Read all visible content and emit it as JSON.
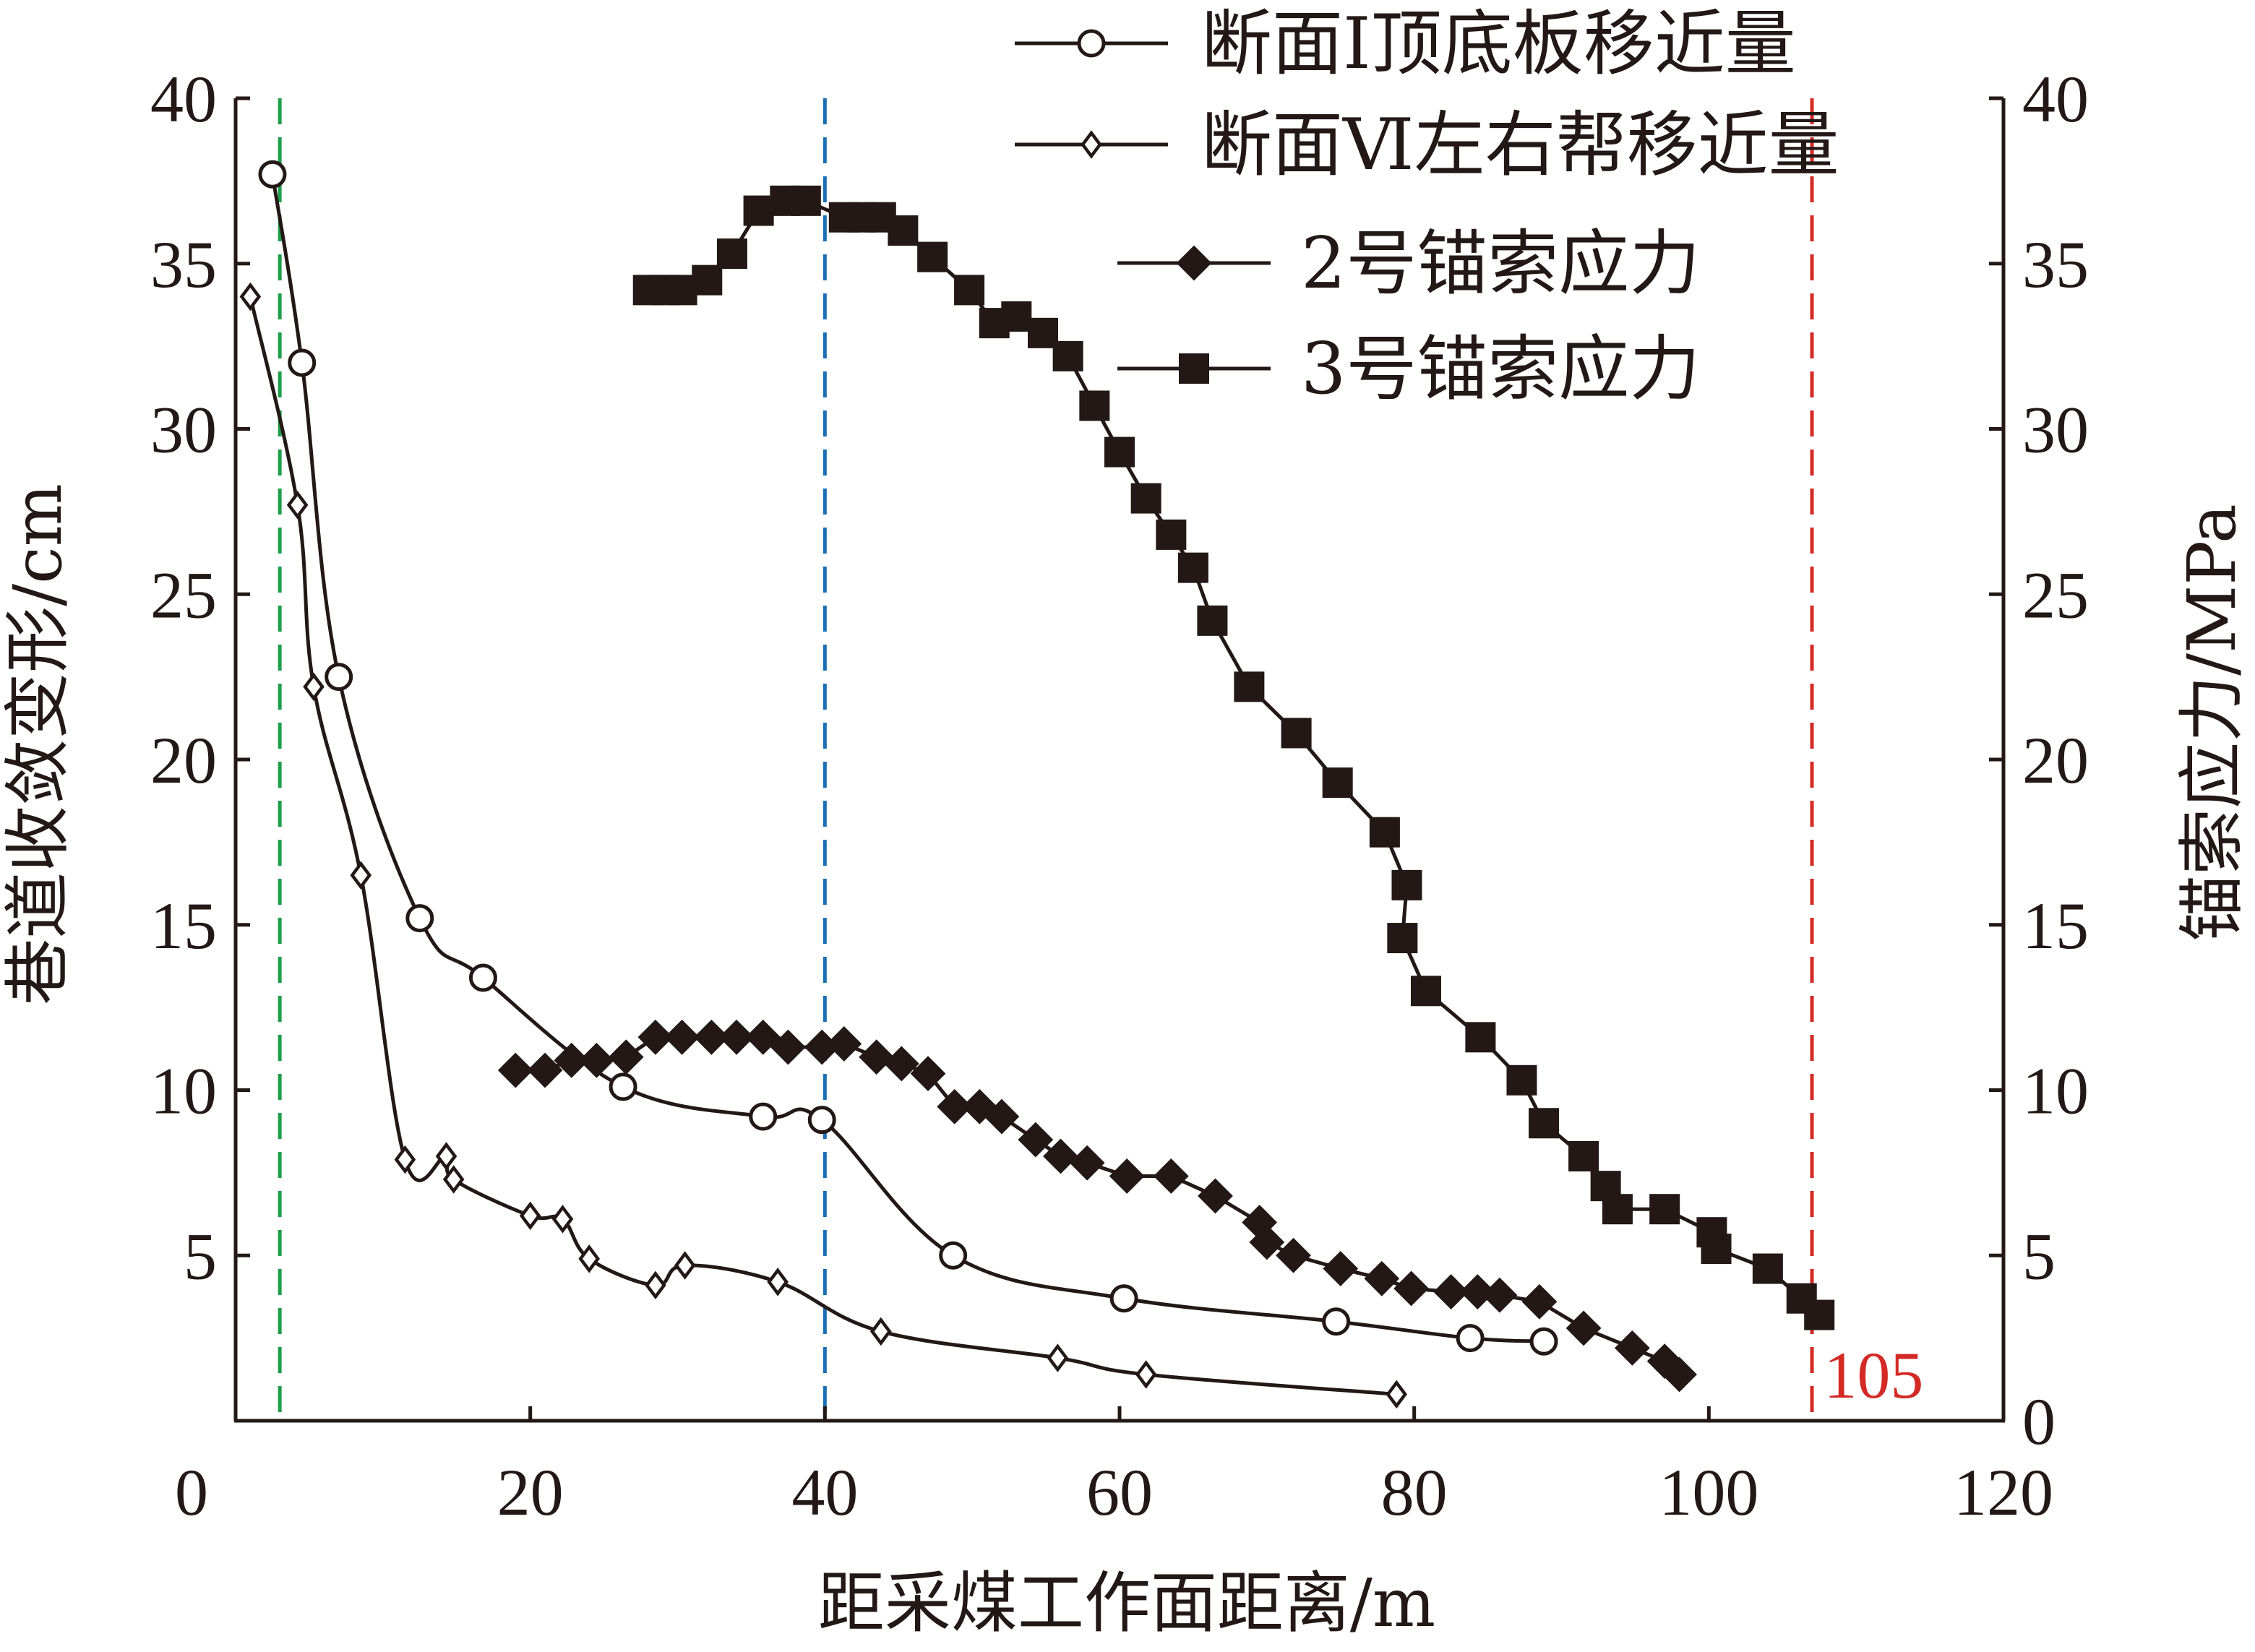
{
  "chart_data": {
    "type": "line",
    "xlabel": "距采煤工作面距离/m",
    "ylabel_left": "巷道收敛变形/cm",
    "ylabel_right": "锚索应力/MPa",
    "xlim": [
      0,
      120
    ],
    "xticks": [
      "0",
      "20",
      "40",
      "60",
      "80",
      "100",
      "120"
    ],
    "ylim_left": [
      0,
      40
    ],
    "yticks_left": [
      "5",
      "10",
      "15",
      "20",
      "25",
      "30",
      "35",
      "40"
    ],
    "ylim_right": [
      0,
      40
    ],
    "yticks_right": [
      "0",
      "5",
      "10",
      "15",
      "20",
      "25",
      "30",
      "35",
      "40"
    ],
    "grid": false,
    "legend_position": "top-right",
    "text_color": "#231815",
    "series": [
      {
        "name": "断面Ⅰ顶底板移近量",
        "axis": "left",
        "marker": "open-circle",
        "x": [
          2.5,
          4.5,
          7.0,
          12.5,
          16.8,
          26.3,
          35.8,
          39.8,
          48.7,
          60.3,
          74.7,
          83.8,
          88.8
        ],
        "y": [
          37.7,
          32.0,
          22.5,
          15.2,
          13.4,
          10.1,
          9.2,
          9.1,
          5.0,
          3.7,
          3.0,
          2.5,
          2.4
        ]
      },
      {
        "name": "断面Ⅵ左右帮移近量",
        "axis": "left",
        "marker": "open-diamond",
        "x": [
          1.0,
          4.2,
          5.3,
          8.5,
          11.5,
          14.3,
          14.8,
          20.0,
          22.2,
          24.0,
          28.5,
          30.5,
          36.8,
          43.8,
          55.8,
          61.8,
          78.8
        ],
        "y": [
          34.0,
          27.7,
          22.2,
          16.5,
          7.9,
          8.0,
          7.3,
          6.2,
          6.1,
          4.9,
          4.1,
          4.7,
          4.2,
          2.7,
          1.9,
          1.4,
          0.8
        ]
      },
      {
        "name": "2号锚索应力",
        "axis": "right",
        "marker": "filled-diamond",
        "x": [
          19.0,
          21.0,
          22.8,
          24.5,
          26.5,
          28.5,
          30.3,
          32.3,
          34.0,
          35.8,
          37.5,
          39.8,
          41.3,
          43.5,
          45.2,
          47.0,
          48.8,
          50.5,
          52.0,
          54.3,
          56.0,
          57.8,
          60.5,
          63.5,
          66.5,
          69.5,
          70.0,
          71.8,
          75.0,
          77.8,
          79.8,
          82.5,
          84.3,
          85.8,
          88.5,
          91.5,
          94.8,
          97.0,
          98.0
        ],
        "y": [
          10.6,
          10.6,
          10.9,
          10.9,
          11.0,
          11.6,
          11.6,
          11.6,
          11.6,
          11.6,
          11.3,
          11.3,
          11.4,
          11.0,
          10.8,
          10.5,
          9.5,
          9.5,
          9.2,
          8.5,
          8.0,
          7.8,
          7.4,
          7.4,
          6.8,
          6.0,
          5.4,
          5.0,
          4.6,
          4.3,
          4.0,
          3.9,
          3.9,
          3.8,
          3.6,
          2.8,
          2.2,
          1.8,
          1.4
        ]
      },
      {
        "name": "3号锚索应力",
        "axis": "right",
        "marker": "filled-square",
        "x": [
          28.0,
          29.2,
          30.3,
          32.0,
          33.7,
          35.5,
          37.3,
          38.7,
          41.3,
          42.5,
          43.8,
          45.3,
          47.3,
          49.8,
          51.5,
          53.0,
          54.8,
          56.5,
          58.3,
          60.0,
          61.8,
          63.5,
          65.0,
          66.3,
          68.8,
          72.0,
          74.8,
          78.0,
          79.5,
          79.2,
          80.8,
          84.5,
          87.3,
          88.8,
          91.5,
          93.0,
          93.8,
          97.0,
          100.2,
          100.5,
          104.0,
          106.3,
          107.5
        ],
        "y": [
          34.2,
          34.2,
          34.2,
          34.5,
          35.3,
          36.6,
          36.9,
          36.9,
          36.4,
          36.4,
          36.4,
          36.0,
          35.2,
          34.2,
          33.2,
          33.4,
          32.9,
          32.2,
          30.7,
          29.3,
          27.9,
          26.8,
          25.8,
          24.2,
          22.2,
          20.8,
          19.3,
          17.8,
          16.2,
          14.6,
          13.0,
          11.6,
          10.3,
          9.0,
          8.0,
          7.1,
          6.4,
          6.4,
          5.7,
          5.2,
          4.6,
          3.7,
          3.2
        ]
      }
    ],
    "reference_lines": [
      {
        "x": 3.0,
        "color": "#1f9e4a"
      },
      {
        "x": 40.0,
        "color": "#1b6fb5"
      },
      {
        "x": 107.0,
        "color": "#d42a25"
      }
    ],
    "annotations": [
      {
        "text": "105",
        "x": 107.8,
        "y": 0.7,
        "color": "#d42a25"
      }
    ]
  }
}
